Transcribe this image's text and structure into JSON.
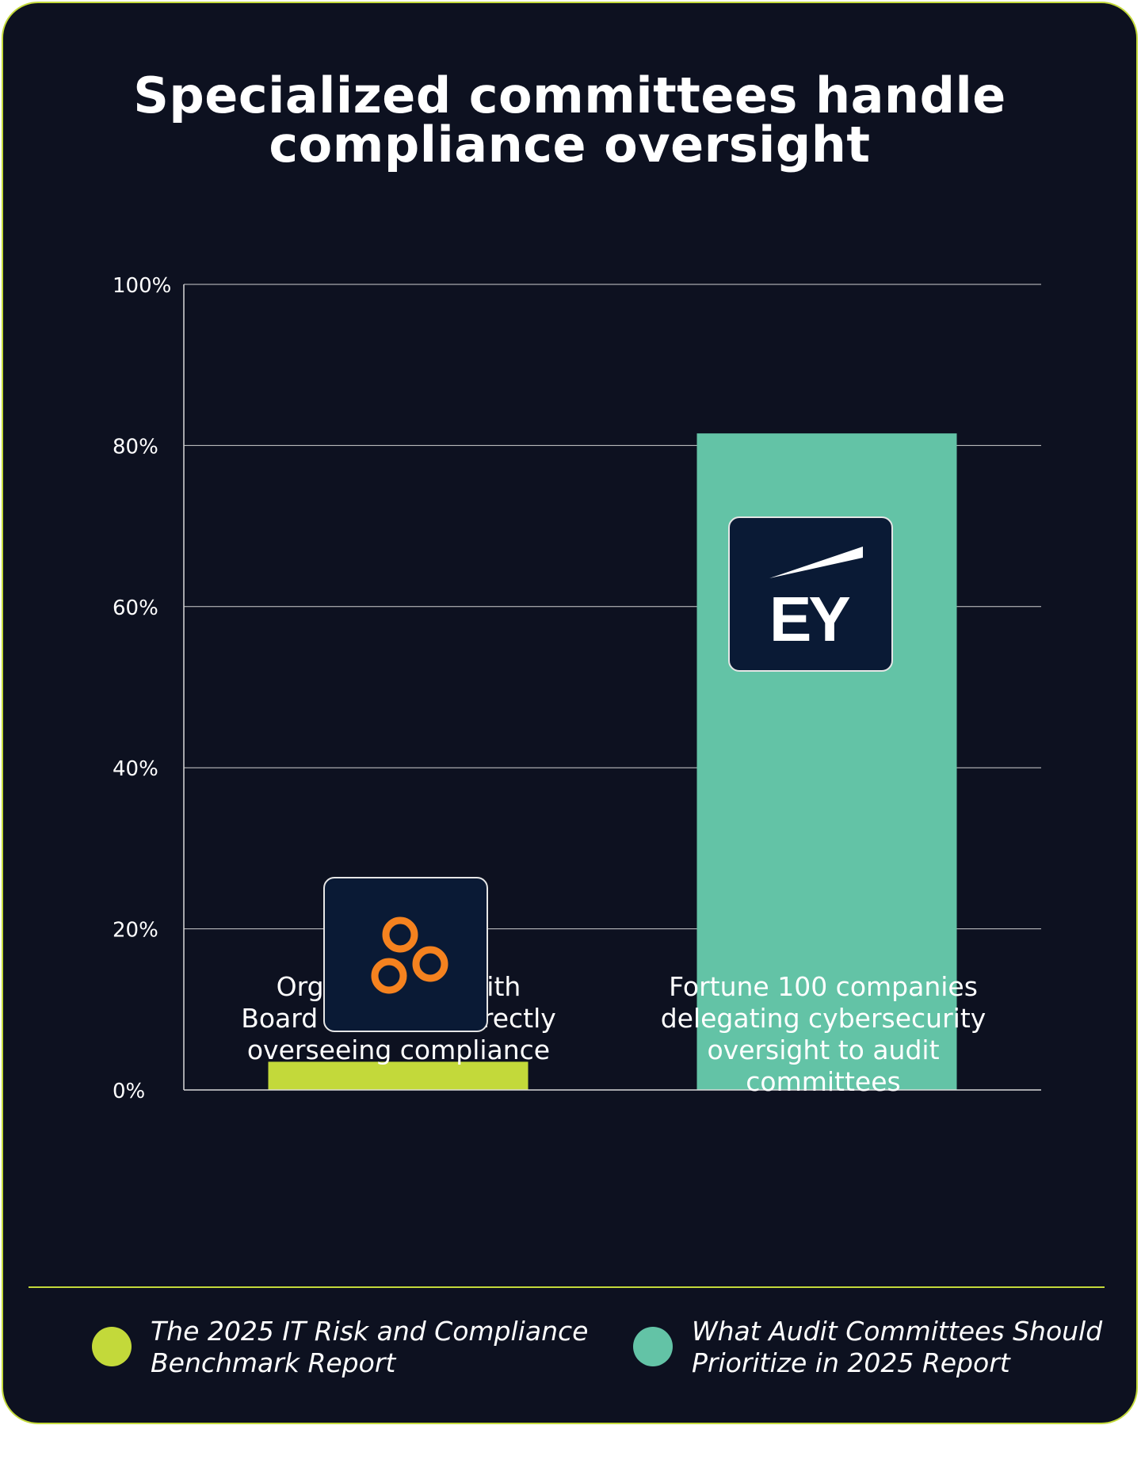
{
  "chart_data": {
    "type": "bar",
    "title_lines": [
      "Specialized committees handle",
      "compliance oversight"
    ],
    "categories": [
      [
        "Organizations with",
        "Board members directly",
        "overseeing compliance"
      ],
      [
        "Fortune 100 companies",
        "delegating cybersecurity",
        "oversight to audit",
        "committees"
      ]
    ],
    "values": [
      3.5,
      81.5
    ],
    "bar_colors": [
      "#c3d93a",
      "#63c3a6"
    ],
    "ylim": [
      0,
      100
    ],
    "yticks": [
      0,
      20,
      40,
      60,
      80,
      100
    ],
    "ytick_labels": [
      "0%",
      "20%",
      "40%",
      "60%",
      "80%",
      "100%"
    ],
    "grid": true,
    "legend": {
      "placement": "bottom",
      "entries": [
        {
          "lines": [
            "The 2025 IT Risk and Compliance",
            "Benchmark Report"
          ],
          "color": "#c3d93a"
        },
        {
          "lines": [
            "What Audit Committees Should",
            "Prioritize in 2025 Report"
          ],
          "color": "#63c3a6"
        }
      ]
    },
    "bar_logos": [
      "three-rings-logo",
      "ey-logo"
    ],
    "ey_logo_text": "EY"
  }
}
